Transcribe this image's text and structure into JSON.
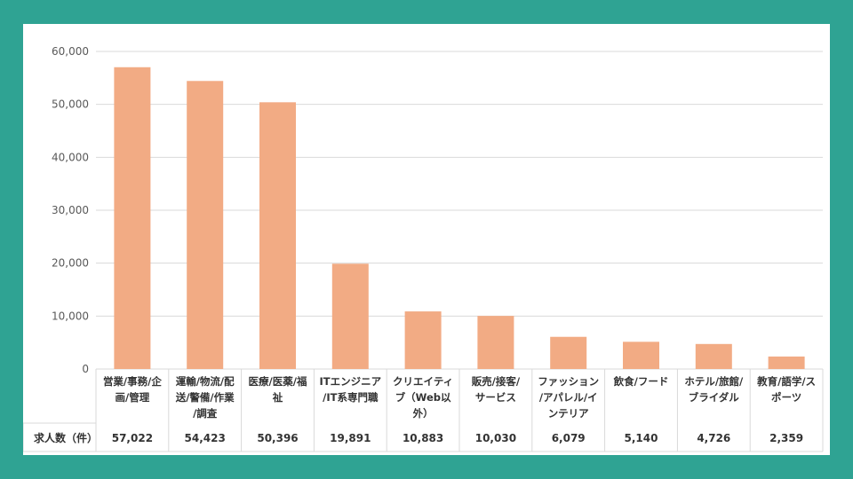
{
  "colors": {
    "background": "#2fa393",
    "panel": "#ffffff",
    "bar": "#f2ab84",
    "grid": "#d9d9d9"
  },
  "chart_data": {
    "type": "bar",
    "title": "",
    "xlabel": "",
    "ylabel": "",
    "ylim": [
      0,
      60000
    ],
    "yticks": [
      "0",
      "10,000",
      "20,000",
      "30,000",
      "40,000",
      "50,000",
      "60,000"
    ],
    "grid": true,
    "legend": "none",
    "categories": [
      [
        "営業/事務/企",
        "画/管理"
      ],
      [
        "運輸/物流/配",
        "送/警備/作業",
        "/調査"
      ],
      [
        "医療/医薬/福",
        "祉"
      ],
      [
        "ITエンジニア",
        "/IT系専門職"
      ],
      [
        "クリエイティ",
        "ブ（Web以",
        "外）"
      ],
      [
        "販売/接客/",
        "サービス"
      ],
      [
        "ファッション",
        "/アパレル/イ",
        "ンテリア"
      ],
      [
        "飲食/フード"
      ],
      [
        "ホテル/旅館/",
        "ブライダル"
      ],
      [
        "教育/語学/ス",
        "ポーツ"
      ]
    ],
    "values": [
      57022,
      54423,
      50396,
      19891,
      10883,
      10030,
      6079,
      5140,
      4726,
      2359
    ],
    "table": {
      "row_label": "求人数（件）",
      "values": [
        "57,022",
        "54,423",
        "50,396",
        "19,891",
        "10,883",
        "10,030",
        "6,079",
        "5,140",
        "4,726",
        "2,359"
      ]
    }
  }
}
